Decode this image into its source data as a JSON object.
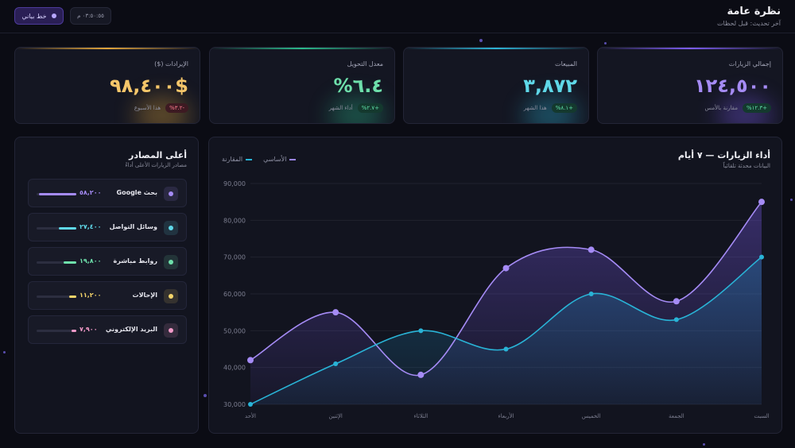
{
  "header": {
    "title": "نظرة عامة",
    "subtitle": "آخر تحديث: قبل لحظات",
    "theme_button": "خط بياني",
    "clock": "٠٣:٥٠:٥٥ م"
  },
  "kpis": [
    {
      "label": "إجمالي الزيارات",
      "value": "١٢٤,٥٠٠",
      "badge": "+١٢.٣%",
      "caption": "مقارنة بالأمس",
      "trend": "up",
      "color": "#a58bf5",
      "bar": "#7c5cf0"
    },
    {
      "label": "المبيعات",
      "value": "٣,٨٧٢",
      "badge": "+٨.١%",
      "caption": "هذا الشهر",
      "trend": "up",
      "color": "#5fd8e8",
      "bar": "#2cb3d4"
    },
    {
      "label": "معدل التحويل",
      "value": "٦.٤%",
      "badge": "+٢.٧%",
      "caption": "أداء الشهر",
      "trend": "up",
      "color": "#6ee0ab",
      "bar": "#2bb88a"
    },
    {
      "label": "الإيرادات ($)",
      "value": "$٩٨,٤٠٠",
      "badge": "-٣.٢%",
      "caption": "هذا الأسبوع",
      "trend": "down",
      "color": "#f5c66a",
      "bar": "#e0a43a"
    }
  ],
  "chart_panel": {
    "title": "أداء الزيارات — ٧ أيام",
    "subtitle": "البيانات محدثة تلقائياً",
    "legend": [
      {
        "name": "الأساسي",
        "color": "#9b85f0"
      },
      {
        "name": "المقارنة",
        "color": "#29b3d6"
      }
    ]
  },
  "chart_data": {
    "type": "area",
    "categories": [
      "الأحد",
      "الإثنين",
      "الثلاثاء",
      "الأربعاء",
      "الخميس",
      "الجمعة",
      "السبت"
    ],
    "series": [
      {
        "name": "الأساسي",
        "values": [
          42000,
          55000,
          38000,
          67000,
          72000,
          58000,
          85000
        ],
        "color": "#a58bf5"
      },
      {
        "name": "المقارنة",
        "values": [
          30000,
          41000,
          50000,
          45000,
          60000,
          53000,
          70000
        ],
        "color": "#29b3d6"
      }
    ],
    "yticks": [
      "30,000",
      "40,000",
      "50,000",
      "60,000",
      "70,000",
      "80,000",
      "90,000"
    ],
    "ylim": [
      30000,
      90000
    ],
    "grid": true
  },
  "sources": {
    "title": "أعلى المصادر",
    "subtitle": "مصادر الزيارات الأعلى أداءً",
    "items": [
      {
        "name": "بحث Google",
        "value": "٥٨,٢٠٠",
        "share": 0.95,
        "color": "#a58bf5",
        "icon": "search-icon"
      },
      {
        "name": "وسائل التواصل",
        "value": "٢٧,٤٠٠",
        "share": 0.45,
        "color": "#5fd8e8",
        "icon": "social-icon"
      },
      {
        "name": "روابط مباشرة",
        "value": "١٩,٨٠٠",
        "share": 0.32,
        "color": "#6ee0ab",
        "icon": "link-icon"
      },
      {
        "name": "الإحالات",
        "value": "١١,٢٠٠",
        "share": 0.19,
        "color": "#f5d56a",
        "icon": "referral-icon"
      },
      {
        "name": "البريد الإلكتروني",
        "value": "٧,٩٠٠",
        "share": 0.13,
        "color": "#f29ac8",
        "icon": "mail-icon"
      }
    ]
  }
}
